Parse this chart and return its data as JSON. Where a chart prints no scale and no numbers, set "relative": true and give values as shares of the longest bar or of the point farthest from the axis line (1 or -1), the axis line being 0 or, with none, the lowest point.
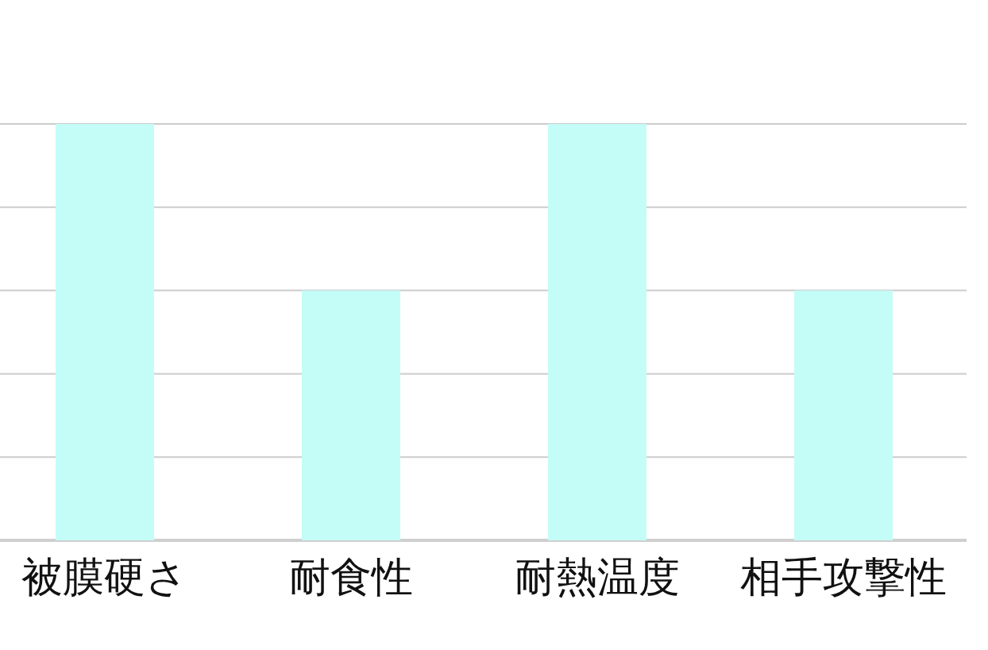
{
  "chart_data": {
    "type": "bar",
    "relative": true,
    "categories": [
      "被膜硬さ",
      "耐食性",
      "耐熱温度",
      "相手攻撃性"
    ],
    "values": [
      1,
      0.6,
      1,
      0.6
    ],
    "color": "#c4fcf7",
    "grid": "y"
  }
}
